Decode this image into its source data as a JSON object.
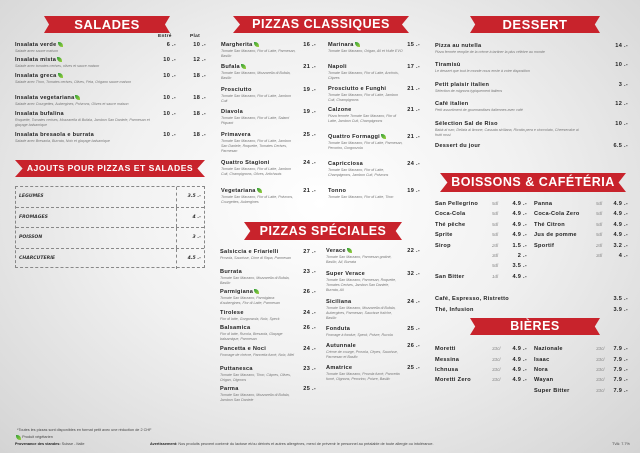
{
  "colors": {
    "accent": "#c8232c",
    "vegetarian": "#2f9e3a"
  },
  "salades": {
    "title": "SALADES",
    "col_entree": "Entré",
    "col_plat": "Plat",
    "items": [
      {
        "name": "Insalata verde",
        "veg": true,
        "desc": "Salade avec sauce maison",
        "entree": "6 .-",
        "plat": "10 .-"
      },
      {
        "name": "Insalata mista",
        "veg": true,
        "desc": "Salade avec tomates cerises, olives et sauce maison",
        "entree": "10 .-",
        "plat": "12 .-"
      },
      {
        "name": "Insalata greca",
        "veg": true,
        "desc": "Salade avec Thon, Tomates cerises, Olives, Feta, Origano sauce maison",
        "entree": "10 .-",
        "plat": "18 .-"
      },
      {
        "name": "Insalata vegetariana",
        "veg": true,
        "desc": "Salade avec Courgettes, Aubergines, Poivrons, Olives et sauce maison",
        "entree": "10 .-",
        "plat": "18 .-"
      },
      {
        "name": "Insalata bufalina",
        "veg": false,
        "desc": "Roquette, Tomates cerises, Mozzarella di Bufala, Jambon San Daniele, Parmesan et glaçage balsamique",
        "entree": "10 .-",
        "plat": "18 .-"
      },
      {
        "name": "Insalata bresaola e burrata",
        "veg": false,
        "desc": "Salade avec Bresaola, Burrata, Noix et glaçage balsamique",
        "entree": "10 .-",
        "plat": "18 .-"
      }
    ]
  },
  "ajouts": {
    "title": "AJOUTS POUR PIZZAS ET SALADES",
    "rows": [
      {
        "label": "LEGUMES",
        "price": "3.5 .-"
      },
      {
        "label": "FROMAGES",
        "price": "4 .-"
      },
      {
        "label": "POISSON",
        "price": "3 .-"
      },
      {
        "label": "CHARCUTERIE",
        "price": "4.5 .-"
      }
    ]
  },
  "pizzas_classiques": {
    "title": "PIZZAS CLASSIQUES",
    "left": [
      {
        "name": "Margherita",
        "veg": true,
        "desc": "Tomate San Marzano, Fior di Latte, Parmesan, Basilic",
        "price": "16 .-"
      },
      {
        "name": "Bufala",
        "veg": true,
        "desc": "Tomate San Marzano, Mozzarella di Bufala, Basilic",
        "price": "21 .-"
      },
      {
        "name": "Prosciutto",
        "veg": false,
        "desc": "Tomate San Marzano, Fior di Latte, Jambon Cuit",
        "price": "19 .-"
      },
      {
        "name": "Diavola",
        "veg": false,
        "desc": "Tomate San Marzano, Fior di Latte, Salami Piquant",
        "price": "19 .-"
      },
      {
        "name": "Primavera",
        "veg": false,
        "desc": "Tomate San Marzano, Fior di Latte, Jambon San Daniele, Roquette, Tomates Cerises, Parmesan",
        "price": "25 .-"
      },
      {
        "name": "Quattro Stagioni",
        "veg": false,
        "desc": "Tomate San Marzano, Fior di Latte, Jambon Cuit, Champignons, Olives, Artichauts",
        "price": "24 .-"
      },
      {
        "name": "Vegetariana",
        "veg": true,
        "desc": "Tomate San Marzano, Fior di Latte, Poivrons, Courgettes, Aubergines",
        "price": "21 .-"
      }
    ],
    "right": [
      {
        "name": "Marinara",
        "veg": true,
        "desc": "Tomate San Marzano, Origan, Ail et Huile EVO",
        "price": "15 .-"
      },
      {
        "name": "Napoli",
        "veg": false,
        "desc": "Tomate San Marzano, Fior di Latte, Anchois, Câpres",
        "price": "17 .-"
      },
      {
        "name": "Prosciutto e Funghi",
        "veg": false,
        "desc": "Tomate San Marzano, Fior di Latte, Jambon Cuit, Champignons",
        "price": "21 .-"
      },
      {
        "name": "Calzone",
        "veg": false,
        "desc": "Pizza fermée Tomate San Marzano, Fior di Latte, Jambon Cuit, Champignons",
        "price": "21 .-"
      },
      {
        "name": "Quattro Formaggi",
        "veg": true,
        "desc": "Tomate San Marzano, Fior di Latte, Parmesan, Pecorino, Gorgonzola",
        "price": "21 .-"
      },
      {
        "name": "Capricciosa",
        "veg": false,
        "desc": "Tomate San Marzano, Fior di Latte, Champignons, Jambon Cuit, Poivrons",
        "price": "24 .-"
      },
      {
        "name": "Tonno",
        "veg": false,
        "desc": "Tomate San Marzano, Fior di Latte, Thon",
        "price": "19 .-"
      }
    ]
  },
  "pizzas_speciales": {
    "title": "PIZZAS SPÉCIALES",
    "left": [
      {
        "name": "Salsiccia e Friarielli",
        "veg": false,
        "desc": "Provola, Saucisse, Cime di Rapa, Parmesan",
        "price": "27 .-"
      },
      {
        "name": "Burrata",
        "veg": false,
        "desc": "Tomate San Marzano, Mozzarella di Bufala, Basilic",
        "price": "23 .-"
      },
      {
        "name": "Parmigiana",
        "veg": true,
        "desc": "Tomate San Marzano, Parmigiana d'aubergines, Fior di Latte, Parmesan",
        "price": "26 .-"
      },
      {
        "name": "Tirolese",
        "veg": false,
        "desc": "Fior di latte, Gorgonzola, Noix, Speck",
        "price": "24 .-"
      },
      {
        "name": "Balsamica",
        "veg": false,
        "desc": "Fior di latte, Rucola, Bresaola, Glaçage balsamique, Parmesan",
        "price": "26 .-"
      },
      {
        "name": "Pancetta e Noci",
        "veg": false,
        "desc": "Fromage de chèvre, Pancetta fumé, Noix, Miel",
        "price": "24 .-"
      },
      {
        "name": "Puttanesca",
        "veg": false,
        "desc": "Tomate San Marzano, Thon, Câpres, Olives, Origan, Oignons",
        "price": "23 .-"
      },
      {
        "name": "Parma",
        "veg": false,
        "desc": "Tomate San Marzano, Mozzarella di Bufala, Jambon San Daniele",
        "price": "25 .-"
      }
    ],
    "right": [
      {
        "name": "Verace",
        "veg": true,
        "desc": "Tomate San Marzano, Parmesan gratiné, Basilic, Ail, Burrata",
        "price": "22 .-"
      },
      {
        "name": "Super Verace",
        "veg": false,
        "desc": "Tomate San Marzano, Parmesan, Roquette, Tomates Cerises, Jambon San Daniele, Burrata, Ail",
        "price": "32 .-"
      },
      {
        "name": "Siciliana",
        "veg": false,
        "desc": "Tomate San Marzano, Mozzarella di Bufala, Aubergines, Parmesan, Saucisse fraîche, Basilic",
        "price": "24 .-"
      },
      {
        "name": "Fonduta",
        "veg": false,
        "desc": "Fromage à fondue, Speck, Poivre, Rucola",
        "price": "25 .-"
      },
      {
        "name": "Autunnale",
        "veg": false,
        "desc": "Crème de courge, Provola, Cèpes, Saucisse, Parmesan et Basilic",
        "price": "26 .-"
      },
      {
        "name": "Amatrice",
        "veg": false,
        "desc": "Tomate San Marzano, Provola fumé, Pancetta fumé, Oignons, Pecorino, Poivre, Basilic",
        "price": "25 .-"
      }
    ]
  },
  "dessert": {
    "title": "DESSERT",
    "items": [
      {
        "name": "Pizza au nutella",
        "desc": "Pizza fermée remplie de la crème à tartiner la plus célèbre au monde",
        "price": "14 .-"
      },
      {
        "name": "Tiramisù",
        "desc": "Le dessert que tout le monde nous envie à votre disposition",
        "price": "10 .-"
      },
      {
        "name": "Petit plaisir italien",
        "desc": "Sélection de mignons typiquement italiens",
        "price": "3 .-"
      },
      {
        "name": "Café italien",
        "desc": "Petit assortiment de gourmandises italiennes avec café",
        "price": "12 .-"
      },
      {
        "name": "Sélection Sal de Riso",
        "desc": "Babà al rum, Delizia al limone, Cassata siciliana, Ricotta pera e cioccolato, Cheesecake ai frutti rossi",
        "price": "10 .-"
      },
      {
        "name": "Dessert du jour",
        "desc": "",
        "price": "6.5 .-"
      }
    ]
  },
  "boissons": {
    "title": "BOISSONS & CAFÉTÉRIA",
    "left": [
      {
        "name": "San Pellegrino",
        "size": "5dl",
        "price": "4.9 .-"
      },
      {
        "name": "Coca-Cola",
        "size": "5dl",
        "price": "4.9 .-"
      },
      {
        "name": "Thé pêche",
        "size": "5dl",
        "price": "4.9 .-"
      },
      {
        "name": "Sprite",
        "size": "5dl",
        "price": "4.9 .-"
      },
      {
        "name": "Sirop",
        "size": "2dl",
        "price": "1.5 .-"
      },
      {
        "name": "",
        "size": "3dl",
        "price": "2 .-"
      },
      {
        "name": "",
        "size": "5dl",
        "price": "3.5 .-"
      },
      {
        "name": "San Bitter",
        "size": "1dl",
        "price": "4.9 .-"
      }
    ],
    "right": [
      {
        "name": "Panna",
        "size": "5dl",
        "price": "4.9 .-"
      },
      {
        "name": "Coca-Cola Zero",
        "size": "5dl",
        "price": "4.9 .-"
      },
      {
        "name": "Thé Citron",
        "size": "5dl",
        "price": "4.9 .-"
      },
      {
        "name": "Jus de pomme",
        "size": "5dl",
        "price": "4.9 .-"
      },
      {
        "name": "Sportif",
        "size": "2dl",
        "price": "3.2 .-"
      },
      {
        "name": "",
        "size": "3dl",
        "price": "4 .-"
      }
    ],
    "cafe": [
      {
        "name": "Café, Espresso, Ristretto",
        "price": "3.5 .-"
      },
      {
        "name": "Thé, Infusion",
        "price": "3.9 .-"
      }
    ]
  },
  "bieres": {
    "title": "BIÈRES",
    "left": [
      {
        "name": "Moretti",
        "size": "33cl",
        "price": "4.9 .-"
      },
      {
        "name": "Messina",
        "size": "33cl",
        "price": "4.9 .-"
      },
      {
        "name": "Ichnusa",
        "size": "33cl",
        "price": "4.9 .-"
      },
      {
        "name": "Moretti Zero",
        "size": "33cl",
        "price": "4.9 .-"
      }
    ],
    "right": [
      {
        "name": "Nazionale",
        "size": "33cl",
        "price": "7.9 .-"
      },
      {
        "name": "Isaac",
        "size": "33cl",
        "price": "7.9 .-"
      },
      {
        "name": "Nora",
        "size": "33cl",
        "price": "7.9 .-"
      },
      {
        "name": "Wayan",
        "size": "33cl",
        "price": "7.9 .-"
      },
      {
        "name": "Super Bitter",
        "size": "33cl",
        "price": "7.9 .-"
      }
    ]
  },
  "footer": {
    "note": "*Toutes les pizzas sont disponibles en format petit avec une réduction de 2 CHF",
    "veg_legend": "Produit végétarien",
    "provenance_label": "Provenance des viandes:",
    "provenance_value": "Suisse - Italie",
    "warning_label": "Avertissement:",
    "warning_text": "Nos produits peuvent contenir du lactose et/ou dérivés et autres allergènes, merci de prévenir le personnel au préalable de toute allergie ou intolérance.",
    "tva": "TVA: 7.7%"
  }
}
